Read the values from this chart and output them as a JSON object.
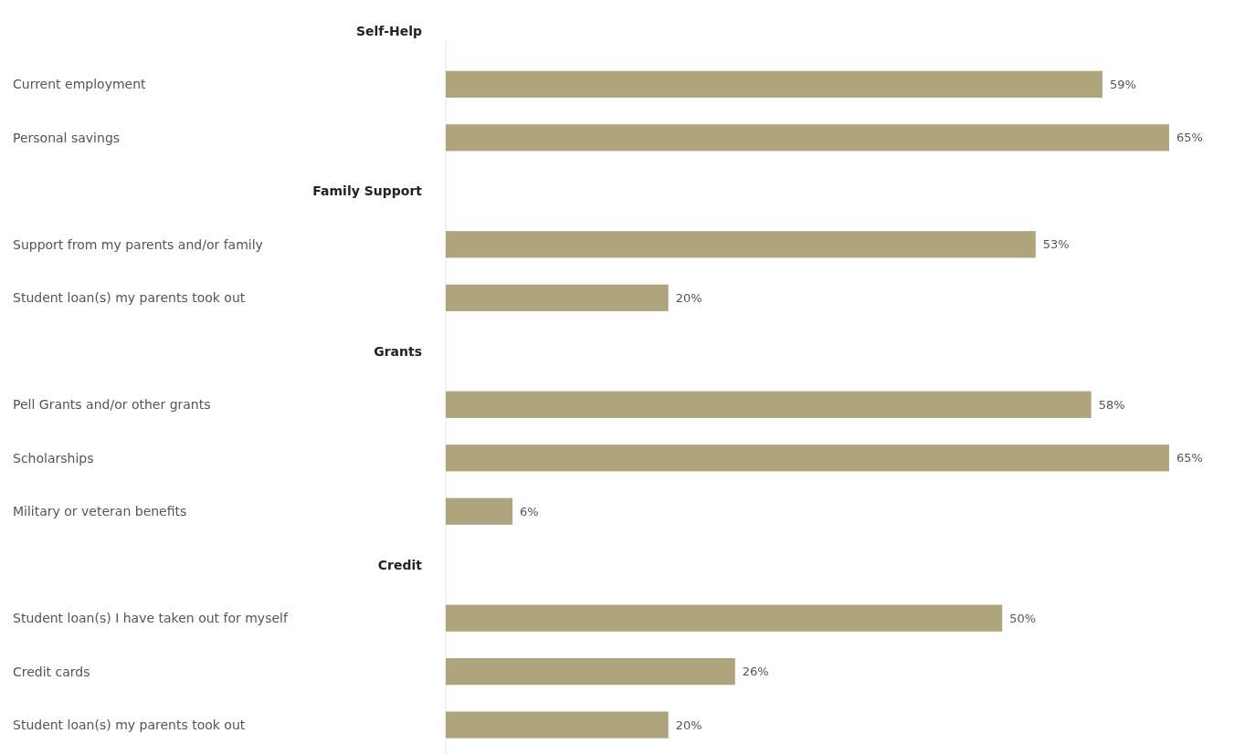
{
  "chart_data": {
    "type": "bar",
    "orientation": "horizontal",
    "color": "#aea57d",
    "annotations": [
      "Self-Help",
      "Family Support",
      "Grants",
      "Credit"
    ],
    "categories": [
      null,
      "Current employment",
      "Personal savings",
      null,
      "Support from my parents and/or family",
      "Student loan(s) my parents took out",
      null,
      "Pell Grants and/or other grants",
      "Scholarships",
      "Military or veteran benefits",
      null,
      "Student loan(s) I have taken out for myself",
      "Credit cards",
      "Student loan(s) my parents took out"
    ],
    "values": [
      null,
      59,
      65,
      null,
      53,
      20,
      null,
      58,
      65,
      6,
      null,
      50,
      26,
      20
    ],
    "value_labels": [
      null,
      "59%",
      "65%",
      null,
      "53%",
      "20%",
      null,
      "58%",
      "65%",
      "6%",
      null,
      "50%",
      "26%",
      "20%"
    ]
  }
}
